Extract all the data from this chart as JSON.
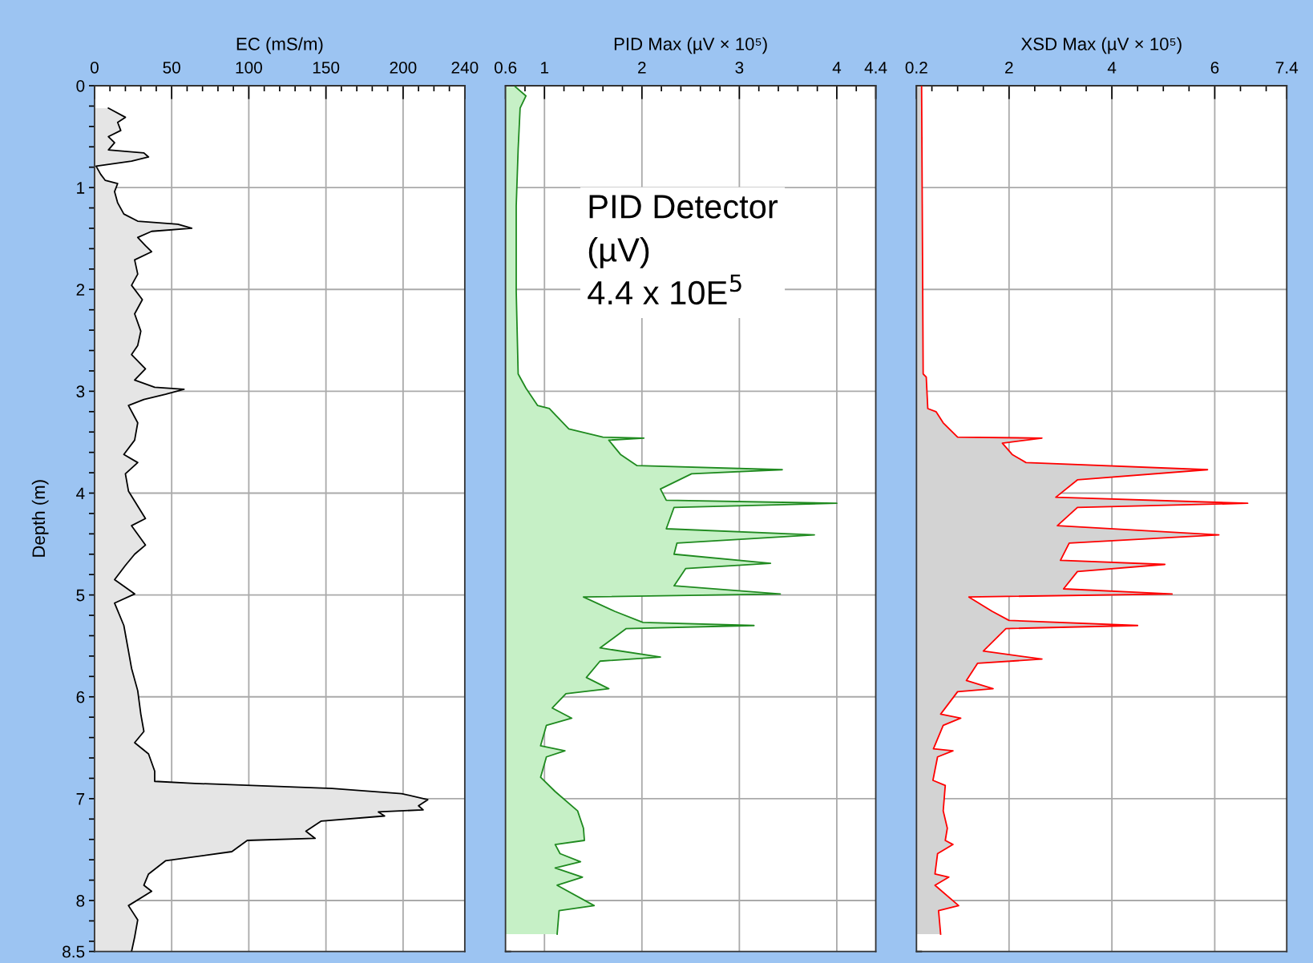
{
  "chart_data": [
    {
      "type": "area",
      "orientation": "horizontal",
      "xlabel": "EC (mS/m)",
      "ylabel": "Depth (m)",
      "grid": true,
      "xlim": [
        0,
        240
      ],
      "xticks": [
        0,
        {
          "value": 10,
          "label": null
        },
        {
          "value": 20,
          "label": null
        },
        {
          "value": 30,
          "label": null
        },
        {
          "value": 40,
          "label": null
        },
        50,
        {
          "value": 60,
          "label": null
        },
        {
          "value": 70,
          "label": null
        },
        {
          "value": 80,
          "label": null
        },
        {
          "value": 90,
          "label": null
        },
        100,
        {
          "value": 110,
          "label": null
        },
        {
          "value": 120,
          "label": null
        },
        {
          "value": 130,
          "label": null
        },
        {
          "value": 140,
          "label": null
        },
        150,
        {
          "value": 160,
          "label": null
        },
        {
          "value": 170,
          "label": null
        },
        {
          "value": 180,
          "label": null
        },
        {
          "value": 190,
          "label": null
        },
        200,
        {
          "value": 210,
          "label": null
        },
        {
          "value": 220,
          "label": null
        },
        {
          "value": 230,
          "label": null
        },
        240
      ],
      "ylim": [
        8.5,
        0
      ],
      "yticks": [
        0,
        {
          "value": 0.2,
          "label": null
        },
        {
          "value": 0.4,
          "label": null
        },
        {
          "value": 0.6,
          "label": null
        },
        {
          "value": 0.8,
          "label": null
        },
        1,
        {
          "value": 1.2,
          "label": null
        },
        {
          "value": 1.4,
          "label": null
        },
        {
          "value": 1.6,
          "label": null
        },
        {
          "value": 1.8,
          "label": null
        },
        2,
        {
          "value": 2.2,
          "label": null
        },
        {
          "value": 2.4,
          "label": null
        },
        {
          "value": 2.6,
          "label": null
        },
        {
          "value": 2.8,
          "label": null
        },
        3,
        {
          "value": 3.2,
          "label": null
        },
        {
          "value": 3.4,
          "label": null
        },
        {
          "value": 3.6,
          "label": null
        },
        {
          "value": 3.8,
          "label": null
        },
        4,
        {
          "value": 4.2,
          "label": null
        },
        {
          "value": 4.4,
          "label": null
        },
        {
          "value": 4.6,
          "label": null
        },
        {
          "value": 4.8,
          "label": null
        },
        5,
        {
          "value": 5.2,
          "label": null
        },
        {
          "value": 5.4,
          "label": null
        },
        {
          "value": 5.6,
          "label": null
        },
        {
          "value": 5.8,
          "label": null
        },
        6,
        {
          "value": 6.2,
          "label": null
        },
        {
          "value": 6.4,
          "label": null
        },
        {
          "value": 6.6,
          "label": null
        },
        {
          "value": 6.8,
          "label": null
        },
        7,
        {
          "value": 7.2,
          "label": null
        },
        {
          "value": 7.4,
          "label": null
        },
        {
          "value": 7.6,
          "label": null
        },
        {
          "value": 7.8,
          "label": null
        },
        8,
        {
          "value": 8.2,
          "label": null
        },
        {
          "value": 8.4,
          "label": null
        },
        8.5
      ],
      "series": [
        {
          "color": "#000000",
          "x": [
            0.22,
            0.31,
            0.36,
            0.44,
            0.5,
            0.56,
            0.63,
            0.66,
            0.7,
            0.74,
            0.79,
            0.87,
            0.93,
            0.96,
            1.04,
            1.15,
            1.26,
            1.33,
            1.36,
            1.4,
            1.43,
            1.49,
            1.57,
            1.63,
            1.71,
            1.85,
            1.96,
            2.1,
            2.24,
            2.41,
            2.55,
            2.64,
            2.78,
            2.89,
            2.96,
            2.98,
            3.03,
            3.08,
            3.14,
            3.31,
            3.48,
            3.62,
            3.7,
            3.81,
            3.98,
            4.25,
            4.32,
            4.51,
            4.6,
            4.71,
            4.85,
            4.99,
            5.08,
            5.3,
            5.55,
            5.72,
            5.94,
            6.17,
            6.34,
            6.45,
            6.56,
            6.73,
            6.83,
            6.85,
            6.9,
            6.95,
            7.01,
            7.07,
            7.11,
            7.13,
            7.17,
            7.22,
            7.32,
            7.39,
            7.41,
            7.52,
            7.61,
            7.74,
            7.85,
            7.91,
            8.05,
            8.19,
            8.36,
            8.5
          ],
          "values": [
            9,
            20,
            15,
            17,
            9,
            13,
            9,
            32,
            35,
            24,
            1,
            4,
            7,
            15,
            13,
            15,
            19,
            28,
            54,
            63,
            37,
            28,
            33,
            37,
            26,
            28,
            24,
            31,
            26,
            30,
            28,
            24,
            33,
            26,
            39,
            58,
            46,
            32,
            22,
            28,
            26,
            19,
            28,
            20,
            22,
            33,
            24,
            33,
            26,
            20,
            13,
            26,
            13,
            19,
            22,
            24,
            28,
            30,
            32,
            26,
            35,
            39,
            39,
            65,
            154,
            199,
            216,
            210,
            213,
            184,
            188,
            147,
            137,
            143,
            99,
            89,
            46,
            35,
            32,
            37,
            22,
            28,
            26,
            24
          ]
        }
      ]
    },
    {
      "type": "area",
      "orientation": "horizontal",
      "xlabel": "PID Max (µV × 10⁵)",
      "grid": true,
      "tick_labels": "x",
      "annotations": [
        "PID Detector\n(µV)\n4.4 x 10E$^{5}$"
      ],
      "xlim": [
        0.6,
        4.4
      ],
      "xticks": [
        0.6,
        {
          "value": 0.8,
          "label": null
        },
        1,
        {
          "value": 1.2,
          "label": null
        },
        {
          "value": 1.4,
          "label": null
        },
        {
          "value": 1.6,
          "label": null
        },
        {
          "value": 1.8,
          "label": null
        },
        2,
        {
          "value": 2.2,
          "label": null
        },
        {
          "value": 2.4,
          "label": null
        },
        {
          "value": 2.6,
          "label": null
        },
        {
          "value": 2.8,
          "label": null
        },
        3,
        {
          "value": 3.2,
          "label": null
        },
        {
          "value": 3.4,
          "label": null
        },
        {
          "value": 3.6,
          "label": null
        },
        {
          "value": 3.8,
          "label": null
        },
        4,
        {
          "value": 4.2,
          "label": null
        },
        4.4
      ],
      "ylim": [
        8.5,
        0
      ],
      "yticks": [
        0,
        1,
        2,
        3,
        4,
        5,
        6,
        7,
        8,
        8.5
      ],
      "series": [
        {
          "color": "#1f8a1f",
          "x": [
            0.01,
            0.1,
            0.22,
            0.62,
            1.18,
            2.02,
            2.83,
            2.97,
            3.14,
            3.17,
            3.23,
            3.37,
            3.45,
            3.46,
            3.48,
            3.62,
            3.73,
            3.77,
            3.81,
            3.96,
            4.07,
            4.1,
            4.14,
            4.35,
            4.41,
            4.49,
            4.6,
            4.69,
            4.74,
            4.91,
            4.99,
            5.02,
            5.16,
            5.27,
            5.3,
            5.33,
            5.52,
            5.61,
            5.65,
            5.81,
            5.92,
            5.97,
            6.11,
            6.21,
            6.28,
            6.48,
            6.53,
            6.59,
            6.79,
            6.93,
            7.12,
            7.29,
            7.41,
            7.45,
            7.54,
            7.62,
            7.68,
            7.77,
            7.85,
            8.05,
            8.1,
            8.33
          ],
          "values": [
            0.7,
            0.81,
            0.75,
            0.73,
            0.71,
            0.71,
            0.73,
            0.81,
            0.93,
            1.05,
            1.11,
            1.25,
            1.6,
            2.02,
            1.66,
            1.78,
            1.95,
            3.44,
            2.51,
            2.19,
            2.25,
            4.0,
            2.33,
            2.25,
            3.77,
            2.36,
            2.33,
            3.32,
            2.45,
            2.33,
            3.42,
            1.4,
            1.72,
            2.01,
            3.15,
            1.84,
            1.57,
            2.19,
            1.57,
            1.43,
            1.66,
            1.22,
            1.08,
            1.28,
            1.02,
            0.96,
            1.21,
            1.02,
            0.96,
            1.11,
            1.34,
            1.4,
            1.41,
            1.11,
            1.16,
            1.37,
            1.11,
            1.39,
            1.13,
            1.51,
            1.15,
            1.13
          ]
        }
      ]
    },
    {
      "type": "area",
      "orientation": "horizontal",
      "xlabel": "XSD Max (µV × 10⁵)",
      "grid": true,
      "tick_labels": "x",
      "xlim": [
        0.2,
        7.4
      ],
      "xticks": [
        0.2,
        {
          "value": 0.5,
          "label": null
        },
        {
          "value": 1,
          "label": null
        },
        {
          "value": 1.5,
          "label": null
        },
        2,
        {
          "value": 2.5,
          "label": null
        },
        {
          "value": 3,
          "label": null
        },
        {
          "value": 3.5,
          "label": null
        },
        4,
        {
          "value": 4.5,
          "label": null
        },
        {
          "value": 5,
          "label": null
        },
        {
          "value": 5.5,
          "label": null
        },
        6,
        {
          "value": 6.5,
          "label": null
        },
        {
          "value": 7,
          "label": null
        },
        7.4
      ],
      "ylim": [
        8.5,
        0
      ],
      "yticks": [
        0,
        1,
        2,
        3,
        4,
        5,
        6,
        7,
        8,
        8.5
      ],
      "series": [
        {
          "color": "#ff0000",
          "x": [
            0.01,
            2.83,
            2.86,
            3.17,
            3.2,
            3.31,
            3.45,
            3.46,
            3.51,
            3.62,
            3.7,
            3.77,
            3.87,
            4.04,
            4.1,
            4.14,
            4.32,
            4.41,
            4.49,
            4.66,
            4.7,
            4.77,
            4.94,
            4.99,
            5.02,
            5.16,
            5.25,
            5.3,
            5.33,
            5.55,
            5.63,
            5.67,
            5.84,
            5.92,
            5.95,
            6.17,
            6.21,
            6.28,
            6.51,
            6.53,
            6.59,
            6.82,
            6.87,
            7.12,
            7.29,
            7.41,
            7.45,
            7.54,
            7.74,
            7.77,
            7.85,
            8.05,
            8.1,
            8.33
          ],
          "values": [
            0.3,
            0.33,
            0.39,
            0.42,
            0.58,
            0.72,
            1.0,
            2.64,
            1.87,
            2.06,
            2.33,
            5.86,
            3.33,
            2.91,
            6.64,
            3.33,
            2.94,
            6.08,
            3.17,
            3.0,
            5.03,
            3.33,
            3.06,
            5.17,
            1.22,
            1.67,
            2.0,
            4.5,
            1.94,
            1.5,
            2.64,
            1.39,
            1.17,
            1.69,
            1.0,
            0.67,
            1.06,
            0.72,
            0.53,
            0.91,
            0.61,
            0.52,
            0.76,
            0.72,
            0.8,
            0.76,
            0.91,
            0.61,
            0.56,
            0.83,
            0.56,
            1.02,
            0.63,
            0.67
          ]
        }
      ]
    }
  ]
}
